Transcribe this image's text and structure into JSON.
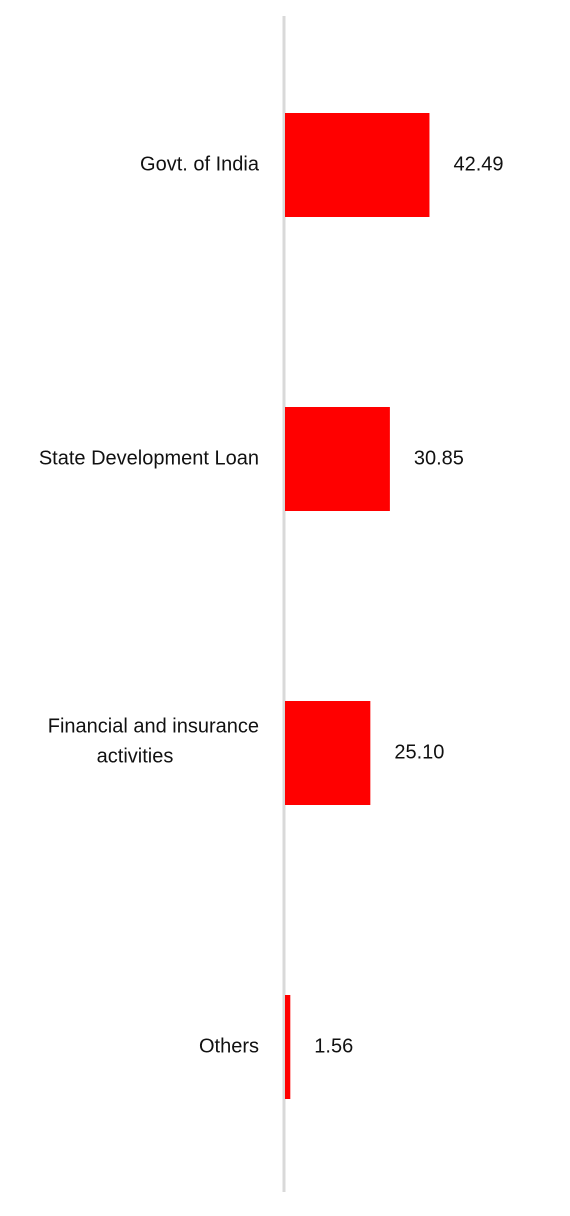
{
  "chart_data": {
    "type": "bar",
    "orientation": "horizontal",
    "categories": [
      "Govt. of India",
      "State Development Loan",
      "Financial and insurance activities",
      "Others"
    ],
    "category_lines": [
      [
        "Govt. of India"
      ],
      [
        "State Development Loan"
      ],
      [
        "Financial and insurance",
        "activities"
      ],
      [
        "Others"
      ]
    ],
    "values": [
      42.49,
      30.85,
      25.1,
      1.56
    ],
    "value_labels": [
      "42.49",
      "30.85",
      "25.10",
      "1.56"
    ],
    "xlim": [
      0,
      100
    ],
    "grid": false,
    "legend": "none",
    "colors": {
      "bar": "#ff0000",
      "axis": "#d9d9d9",
      "text": "#111111"
    }
  }
}
